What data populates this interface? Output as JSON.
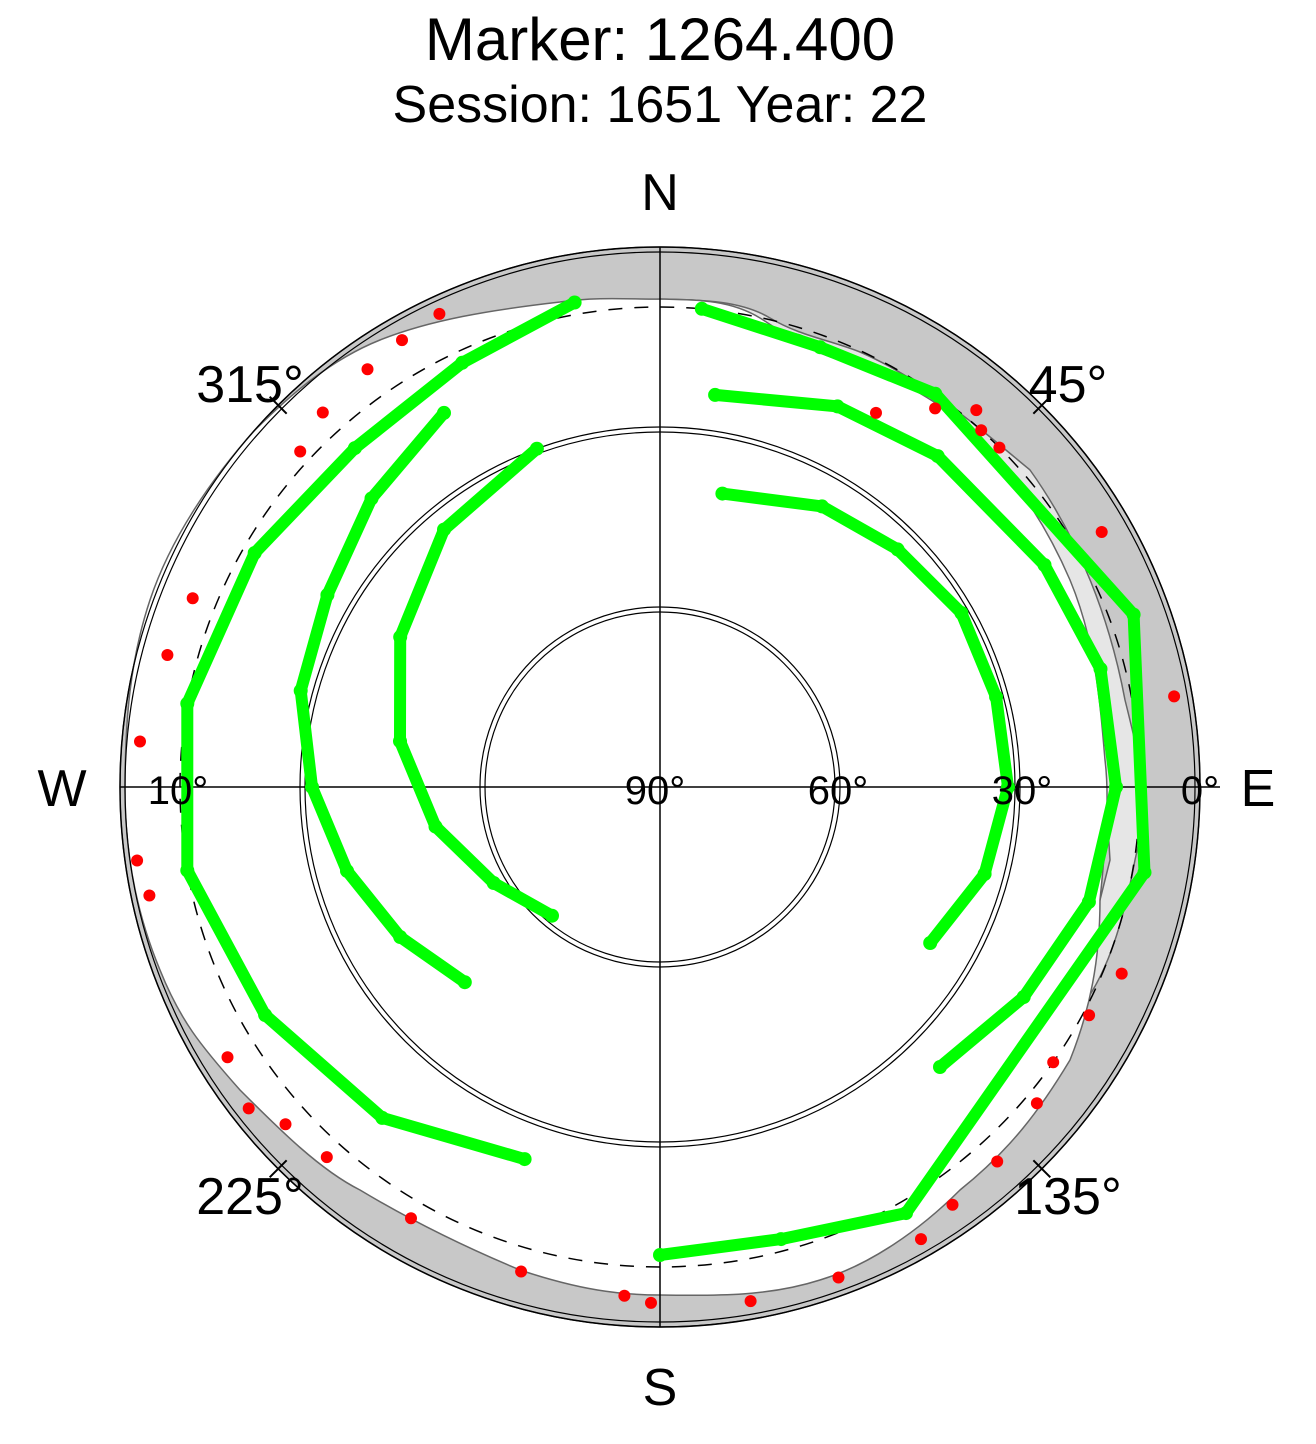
{
  "chart_data": {
    "type": "scatter",
    "projection": "polar-sky",
    "title": "Marker: 1264.400",
    "subtitle": "Session: 1651 Year: 22",
    "compass": {
      "north": "N",
      "south": "S",
      "east": "E",
      "west": "W"
    },
    "azimuth_labels": [
      "45°",
      "135°",
      "225°",
      "315°"
    ],
    "elevation_labels": [
      "0°",
      "30°",
      "60°",
      "90°",
      "10°"
    ],
    "radial_axis": {
      "quantity": "elevation",
      "range": [
        0,
        90
      ],
      "direction": "zenith-at-center"
    },
    "azimuth_axis": {
      "range": [
        0,
        360
      ],
      "zero": "north",
      "direction": "clockwise"
    },
    "elevation_cutoff_dashed": 10,
    "grid": true,
    "colors": {
      "tracks": "#00ff00",
      "low_elevation_points": "#ff0000",
      "obstruction_dark": "#c8c8c8",
      "obstruction_light": "#e6e6e6",
      "grid": "#000000"
    },
    "series": [
      {
        "role": "satellite-tracks",
        "color": "#00ff00",
        "points_az_el": [
          [
            8,
            24
          ],
          [
            25,
            20
          ],
          [
            40,
            18
          ],
          [
            60,
            16
          ],
          [
            75,
            14
          ],
          [
            90,
            14
          ],
          [
            105,
            16
          ],
          [
            120,
            20
          ],
          [
            135,
            24
          ],
          [
            12,
            40
          ],
          [
            30,
            36
          ],
          [
            45,
            34
          ],
          [
            60,
            32
          ],
          [
            75,
            32
          ],
          [
            90,
            32
          ],
          [
            105,
            34
          ],
          [
            120,
            38
          ],
          [
            5,
            10
          ],
          [
            20,
            12
          ],
          [
            35,
            10
          ],
          [
            70,
            6
          ],
          [
            100,
            8
          ],
          [
            150,
            8
          ],
          [
            165,
            12
          ],
          [
            180,
            12
          ],
          [
            330,
            18
          ],
          [
            315,
            22
          ],
          [
            300,
            26
          ],
          [
            285,
            28
          ],
          [
            270,
            32
          ],
          [
            255,
            36
          ],
          [
            240,
            40
          ],
          [
            225,
            44
          ],
          [
            340,
            30
          ],
          [
            320,
            34
          ],
          [
            300,
            40
          ],
          [
            280,
            46
          ],
          [
            260,
            52
          ],
          [
            240,
            58
          ],
          [
            220,
            62
          ],
          [
            350,
            8
          ],
          [
            335,
            12
          ],
          [
            318,
            14
          ],
          [
            300,
            12
          ],
          [
            280,
            10
          ],
          [
            260,
            10
          ],
          [
            240,
            14
          ],
          [
            220,
            18
          ],
          [
            200,
            24
          ]
        ]
      },
      {
        "role": "below-cutoff",
        "color": "#ff0000",
        "points_az_el": [
          [
            313,
            8
          ],
          [
            318,
            6
          ],
          [
            325,
            5
          ],
          [
            330,
            4
          ],
          [
            335,
            3
          ],
          [
            292,
            6
          ],
          [
            285,
            5
          ],
          [
            275,
            3
          ],
          [
            262,
            2
          ],
          [
            258,
            3
          ],
          [
            30,
            18
          ],
          [
            36,
            12
          ],
          [
            40,
            8
          ],
          [
            42,
            10
          ],
          [
            45,
            10
          ],
          [
            232,
            3
          ],
          [
            238,
            5
          ],
          [
            228,
            6
          ],
          [
            222,
            7
          ],
          [
            210,
            7
          ],
          [
            196,
            6
          ],
          [
            184,
            5
          ],
          [
            181,
            4
          ],
          [
            170,
            3
          ],
          [
            160,
            3
          ],
          [
            150,
            3
          ],
          [
            145,
            5
          ],
          [
            138,
            6
          ],
          [
            130,
            8
          ],
          [
            125,
            10
          ],
          [
            118,
            9
          ],
          [
            112,
            7
          ],
          [
            80,
            3
          ],
          [
            60,
            5
          ]
        ]
      }
    ]
  }
}
